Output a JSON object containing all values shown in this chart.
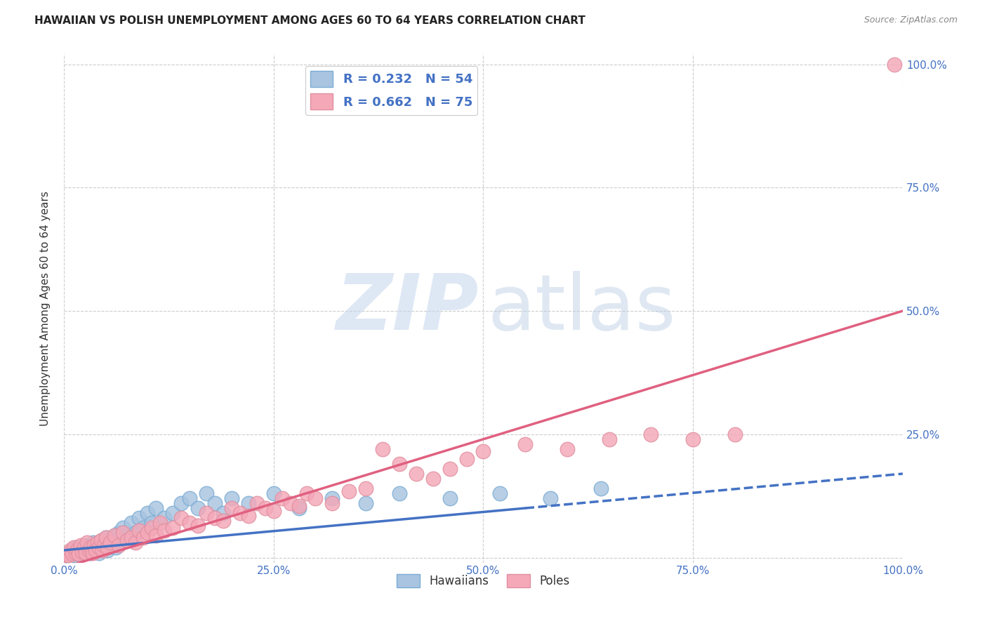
{
  "title": "HAWAIIAN VS POLISH UNEMPLOYMENT AMONG AGES 60 TO 64 YEARS CORRELATION CHART",
  "source": "Source: ZipAtlas.com",
  "ylabel": "Unemployment Among Ages 60 to 64 years",
  "xlim": [
    0,
    100
  ],
  "ylim": [
    -1,
    102
  ],
  "hawaiian_R": 0.232,
  "hawaiian_N": 54,
  "polish_R": 0.662,
  "polish_N": 75,
  "hawaiian_color": "#a8c4e0",
  "polish_color": "#f4a8b8",
  "hawaiian_line_color": "#4472C4",
  "polish_line_color": "#e06080",
  "background_color": "#ffffff",
  "grid_color": "#cccccc",
  "tick_color": "#4472C4",
  "title_color": "#222222",
  "source_color": "#888888",
  "legend_text_color": "#4472C4",
  "ylabel_color": "#333333",
  "hawaiian_x": [
    0.3,
    0.5,
    0.8,
    1.0,
    1.2,
    1.5,
    1.8,
    2.0,
    2.2,
    2.5,
    2.8,
    3.0,
    3.2,
    3.5,
    3.8,
    4.0,
    4.2,
    4.5,
    4.8,
    5.0,
    5.2,
    5.5,
    5.8,
    6.0,
    6.2,
    6.5,
    7.0,
    7.5,
    8.0,
    8.5,
    9.0,
    9.5,
    10.0,
    10.5,
    11.0,
    12.0,
    13.0,
    14.0,
    15.0,
    16.0,
    17.0,
    18.0,
    19.0,
    20.0,
    22.0,
    25.0,
    28.0,
    32.0,
    36.0,
    40.0,
    46.0,
    52.0,
    58.0,
    64.0
  ],
  "hawaiian_y": [
    0.5,
    1.0,
    0.8,
    1.5,
    0.5,
    2.0,
    1.0,
    1.5,
    0.8,
    2.5,
    1.2,
    2.0,
    1.0,
    3.0,
    1.5,
    2.5,
    1.0,
    3.5,
    2.0,
    4.0,
    1.5,
    3.0,
    2.5,
    4.5,
    2.0,
    5.0,
    6.0,
    4.0,
    7.0,
    5.0,
    8.0,
    6.0,
    9.0,
    7.0,
    10.0,
    8.0,
    9.0,
    11.0,
    12.0,
    10.0,
    13.0,
    11.0,
    9.0,
    12.0,
    11.0,
    13.0,
    10.0,
    12.0,
    11.0,
    13.0,
    12.0,
    13.0,
    12.0,
    14.0
  ],
  "polish_x": [
    0.2,
    0.4,
    0.6,
    0.8,
    1.0,
    1.2,
    1.4,
    1.6,
    1.8,
    2.0,
    2.2,
    2.4,
    2.6,
    2.8,
    3.0,
    3.2,
    3.4,
    3.6,
    3.8,
    4.0,
    4.2,
    4.4,
    4.6,
    4.8,
    5.0,
    5.2,
    5.5,
    6.0,
    6.5,
    7.0,
    7.5,
    8.0,
    8.5,
    9.0,
    9.5,
    10.0,
    10.5,
    11.0,
    11.5,
    12.0,
    13.0,
    14.0,
    15.0,
    16.0,
    17.0,
    18.0,
    19.0,
    20.0,
    21.0,
    22.0,
    23.0,
    24.0,
    25.0,
    26.0,
    27.0,
    28.0,
    29.0,
    30.0,
    32.0,
    34.0,
    36.0,
    38.0,
    40.0,
    42.0,
    44.0,
    46.0,
    48.0,
    50.0,
    55.0,
    60.0,
    65.0,
    70.0,
    75.0,
    80.0,
    99.0
  ],
  "polish_y": [
    0.5,
    1.0,
    0.5,
    1.5,
    0.8,
    2.0,
    1.0,
    1.5,
    0.8,
    2.5,
    1.2,
    2.0,
    1.0,
    3.0,
    1.5,
    2.0,
    1.0,
    2.5,
    1.5,
    3.0,
    2.0,
    3.5,
    1.5,
    2.5,
    4.0,
    2.0,
    3.0,
    4.5,
    2.5,
    5.0,
    3.5,
    4.0,
    3.0,
    5.5,
    4.0,
    5.0,
    6.0,
    4.5,
    7.0,
    5.5,
    6.0,
    8.0,
    7.0,
    6.5,
    9.0,
    8.0,
    7.5,
    10.0,
    9.0,
    8.5,
    11.0,
    10.0,
    9.5,
    12.0,
    11.0,
    10.5,
    13.0,
    12.0,
    11.0,
    13.5,
    14.0,
    22.0,
    19.0,
    17.0,
    16.0,
    18.0,
    20.0,
    21.5,
    23.0,
    22.0,
    24.0,
    25.0,
    24.0,
    25.0,
    100.0
  ],
  "h_line_x0": 0.0,
  "h_line_x1": 100.0,
  "h_line_y0": 1.5,
  "h_line_y1": 17.0,
  "h_solid_end": 55.0,
  "p_line_x0": 0.0,
  "p_line_x1": 100.0,
  "p_line_y0": -2.0,
  "p_line_y1": 50.0
}
